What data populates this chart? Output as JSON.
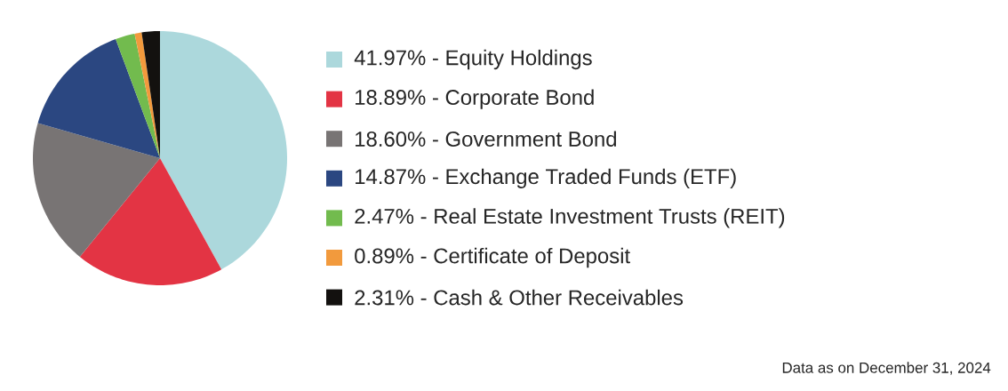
{
  "chart_data": {
    "type": "pie",
    "categories": [
      "41.97% - Equity Holdings",
      "18.89% - Corporate Bond",
      "18.60% - Government Bond",
      "14.87% - Exchange Traded Funds (ETF)",
      "2.47% - Real Estate Investment Trusts (REIT)",
      "0.89% - Certificate of Deposit",
      "2.31% - Cash & Other Receivables"
    ],
    "values": [
      41.97,
      18.89,
      18.6,
      14.87,
      2.47,
      0.89,
      2.31
    ],
    "colors": [
      "#acd8dc",
      "#e33444",
      "#787474",
      "#2b4781",
      "#72bb4e",
      "#f29a3d",
      "#13110f"
    ],
    "legend": "right",
    "annotations": [
      "Data as on December 31, 2024"
    ]
  }
}
